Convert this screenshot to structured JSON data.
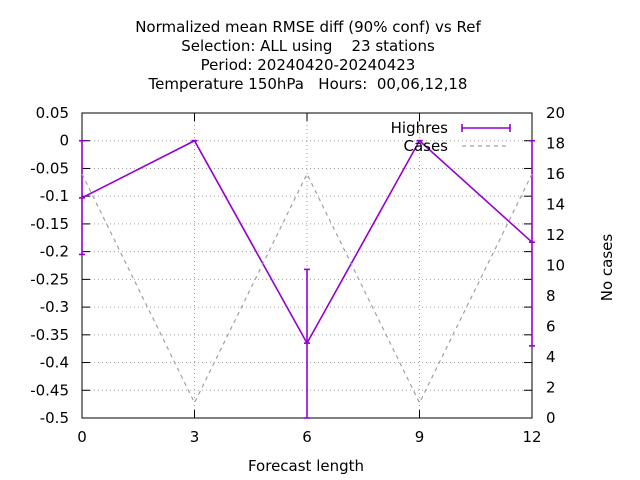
{
  "chart_data": {
    "type": "line",
    "title_lines": [
      "Normalized mean RMSE diff (90% conf) vs Ref",
      "Selection: ALL using    23 stations",
      "Period: 20240420-20240423",
      "Temperature 150hPa   Hours:  00,06,12,18"
    ],
    "xlabel": "Forecast length",
    "ylabel": "",
    "y2label": "No cases",
    "xlim": [
      0,
      12
    ],
    "ylim": [
      -0.5,
      0.05
    ],
    "y2lim": [
      0,
      20
    ],
    "xticks": [
      0,
      3,
      6,
      9,
      12
    ],
    "yticks": [
      0.05,
      0,
      -0.05,
      -0.1,
      -0.15,
      -0.2,
      -0.25,
      -0.3,
      -0.35,
      -0.4,
      -0.45,
      -0.5
    ],
    "y2ticks": [
      0,
      2,
      4,
      6,
      8,
      10,
      12,
      14,
      16,
      18,
      20
    ],
    "grid": true,
    "legend_position": "top-right",
    "series": [
      {
        "name": "Highres",
        "axis": "y",
        "color": "#9400d3",
        "style": "solid-errorbars",
        "x": [
          0,
          3,
          6,
          9,
          12
        ],
        "y": [
          -0.103,
          0.0,
          -0.365,
          0.0,
          -0.183
        ],
        "err_low": [
          -0.205,
          0.0,
          -0.5,
          0.0,
          -0.37
        ],
        "err_high": [
          0.0,
          0.0,
          -0.232,
          0.0,
          0.0
        ]
      },
      {
        "name": "Cases",
        "axis": "y2",
        "color": "#a0a0a0",
        "style": "dashed",
        "x": [
          0,
          3,
          6,
          9,
          12
        ],
        "y": [
          16,
          1,
          16,
          1,
          16
        ]
      }
    ]
  }
}
